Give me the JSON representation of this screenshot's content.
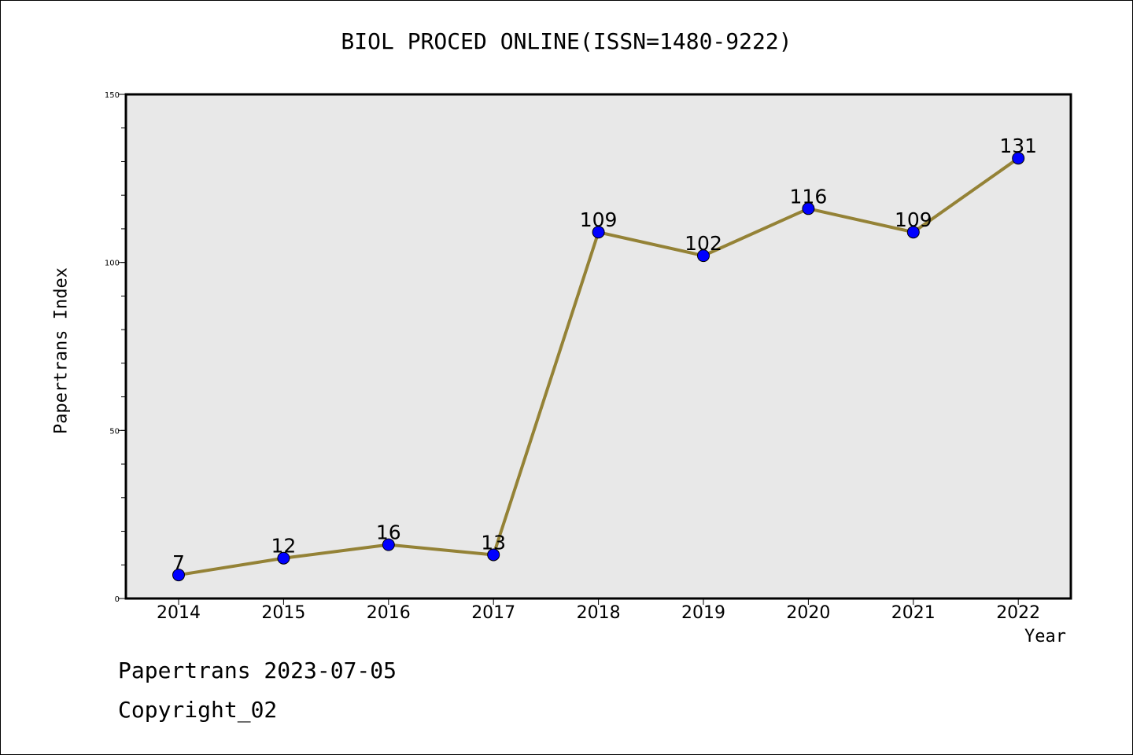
{
  "chart_data": {
    "type": "line",
    "title": "BIOL PROCED ONLINE(ISSN=1480-9222)",
    "xlabel": "Year",
    "ylabel": "Papertrans Index",
    "categories": [
      "2014",
      "2015",
      "2016",
      "2017",
      "2018",
      "2019",
      "2020",
      "2021",
      "2022"
    ],
    "series": [
      {
        "values": [
          7,
          12,
          16,
          13,
          109,
          102,
          116,
          109,
          131
        ]
      }
    ],
    "ylim": [
      0,
      150
    ],
    "yticks": [
      0,
      50,
      100,
      150
    ],
    "grid": false,
    "line_color": "#948236",
    "marker_color": "#0000ff",
    "plot_background": "#e8e8e8"
  },
  "footer": {
    "line1": "Papertrans 2023-07-05",
    "line2": "Copyright_02"
  }
}
